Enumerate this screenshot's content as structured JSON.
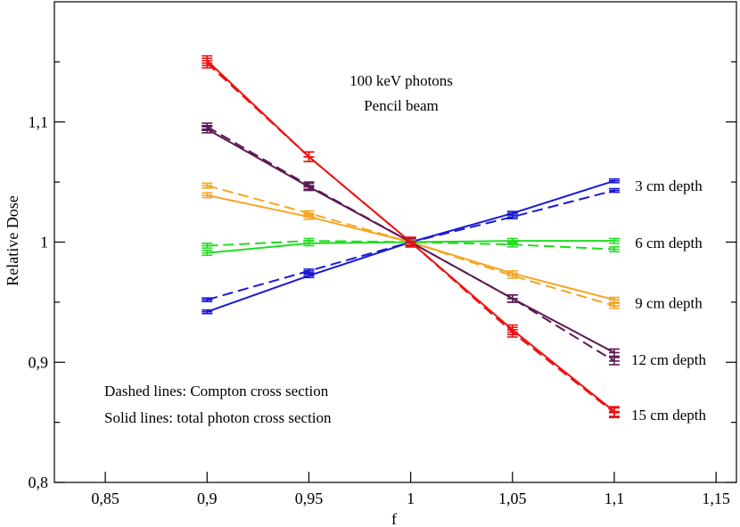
{
  "chart_data": {
    "type": "line",
    "title_lines": [
      "100 keV photons",
      "Pencil beam"
    ],
    "xlabel": "f",
    "ylabel": "Relative Dose",
    "xlim": [
      0.825,
      1.16
    ],
    "ylim": [
      0.8,
      1.2
    ],
    "x_ticks": [
      0.85,
      0.9,
      0.95,
      1.0,
      1.05,
      1.1,
      1.15
    ],
    "x_tick_labels": [
      "0,85",
      "0,9",
      "0,95",
      "1",
      "1,05",
      "1,1",
      "1,15"
    ],
    "y_ticks": [
      0.8,
      0.9,
      1.0,
      1.1
    ],
    "y_tick_labels": [
      "0,8",
      "0,9",
      "1",
      "1,1"
    ],
    "y_minor_ticks": [
      0.85,
      0.95,
      1.05,
      1.15
    ],
    "x": [
      0.9,
      0.95,
      1.0,
      1.05,
      1.1
    ],
    "series": [
      {
        "name": "3 cm depth",
        "label": "3 cm depth",
        "color": "#1a1ad6",
        "solid": [
          0.942,
          0.972,
          1.0,
          1.024,
          1.051
        ],
        "dashed": [
          0.952,
          0.976,
          1.0,
          1.021,
          1.043
        ],
        "err": 0.0015,
        "label_y": 1.047
      },
      {
        "name": "6 cm depth",
        "label": "6 cm depth",
        "color": "#22dd22",
        "solid": [
          0.991,
          0.999,
          1.0,
          1.001,
          1.001
        ],
        "dashed": [
          0.997,
          1.001,
          1.0,
          0.998,
          0.994
        ],
        "err": 0.002,
        "label_y": 0.9995
      },
      {
        "name": "9 cm depth",
        "label": "9 cm depth",
        "color": "#f5a623",
        "solid": [
          1.039,
          1.021,
          1.0,
          0.974,
          0.952
        ],
        "dashed": [
          1.047,
          1.024,
          1.0,
          0.972,
          0.947
        ],
        "err": 0.002,
        "label_y": 0.9495
      },
      {
        "name": "12 cm depth",
        "label": "12 cm depth",
        "color": "#5c1a52",
        "solid": [
          1.094,
          1.046,
          1.0,
          0.953,
          0.908
        ],
        "dashed": [
          1.096,
          1.047,
          1.0,
          0.953,
          0.901
        ],
        "err": 0.003,
        "label_y": 0.9025
      },
      {
        "name": "15 cm depth",
        "label": "15 cm depth",
        "color": "#ee1111",
        "solid": [
          1.151,
          1.071,
          1.0,
          0.927,
          0.859
        ],
        "dashed": [
          1.149,
          1.071,
          1.0,
          0.925,
          0.858
        ],
        "err": 0.004,
        "label_y": 0.8565
      }
    ],
    "annotations": [
      "Dashed lines: Compton cross section",
      "Solid lines: total photon cross section"
    ],
    "grid": false
  }
}
